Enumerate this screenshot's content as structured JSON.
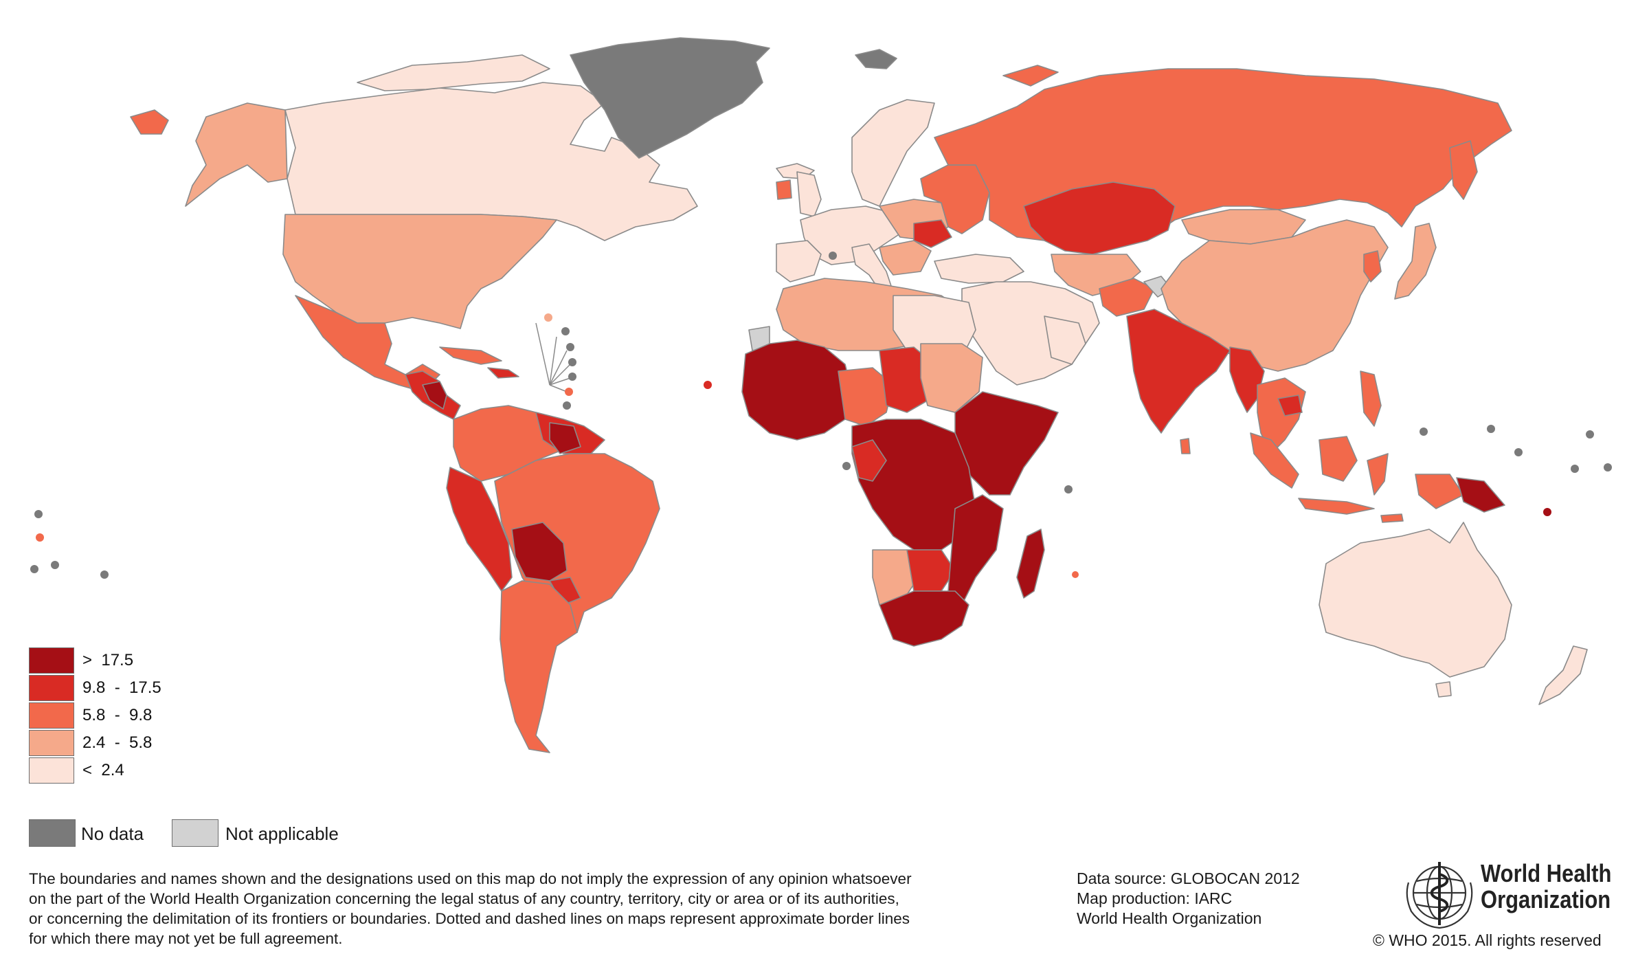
{
  "colors": {
    "gt_17_5": "#a50f15",
    "c9_8_17_5": "#d92b24",
    "c5_8_9_8": "#f2694b",
    "c2_4_5_8": "#f5a98a",
    "lt_2_4": "#fce3d9",
    "no_data": "#7a7a7a",
    "not_applicable": "#d2d2d2",
    "white": "#ffffff"
  },
  "legend": {
    "classes": [
      {
        "label": ">  17.5",
        "color_key": "gt_17_5"
      },
      {
        "label": "9.8  -  17.5",
        "color_key": "c9_8_17_5"
      },
      {
        "label": "5.8  -  9.8",
        "color_key": "c5_8_9_8"
      },
      {
        "label": "2.4  -  5.8",
        "color_key": "c2_4_5_8"
      },
      {
        "label": "<  2.4",
        "color_key": "lt_2_4"
      }
    ],
    "no_data_label": "No data",
    "not_applicable_label": "Not applicable"
  },
  "disclaimer": [
    "The boundaries and names shown and the designations used on this map do not imply the expression of any opinion whatsoever",
    "on the part of the World Health Organization concerning the legal status of any country, territory, city or area or of its authorities,",
    "or concerning the delimitation of its frontiers or boundaries. Dotted and dashed lines on maps represent approximate border lines",
    "for which there may not yet be full agreement."
  ],
  "source": {
    "line1": "Data source: GLOBOCAN 2012",
    "line2": "Map production: IARC",
    "line3": "World Health Organization"
  },
  "who": {
    "name_line1": "World Health",
    "name_line2": "Organization",
    "copyright": "© WHO 2015. All rights reserved",
    "emblem_icon": "who-emblem-icon"
  }
}
